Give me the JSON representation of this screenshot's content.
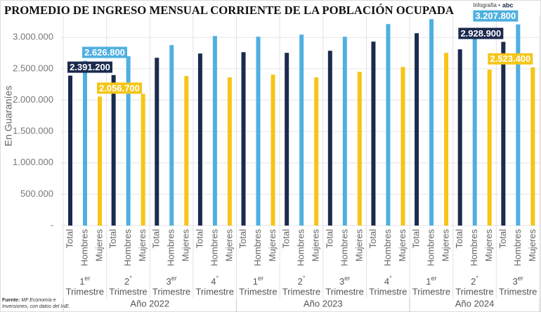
{
  "chart_data": {
    "type": "bar",
    "title": "PROMEDIO DE INGRESO MENSUAL CORRIENTE DE LA POBLACIÓN OCUPADA",
    "credit": "Infografía •",
    "logo": "abc",
    "y_label": "En Guaraníes",
    "source_label": "Fuente:",
    "source": [
      "MF Economía e",
      "Inversiones, con datos del INE."
    ],
    "categories": [
      "1",
      "2",
      "3",
      "4",
      "1",
      "2",
      "3",
      "4",
      "1",
      "2",
      "3"
    ],
    "category_suffixes": [
      "er",
      "°",
      "er",
      "°",
      "er",
      "°",
      "er",
      "°",
      "er",
      "°",
      "er"
    ],
    "category_word": "Trimestre",
    "year_groups": [
      {
        "label": "Año 2022",
        "quarters": 4
      },
      {
        "label": "Año 2023",
        "quarters": 4
      },
      {
        "label": "Año 2024",
        "quarters": 3
      }
    ],
    "series": [
      {
        "name": "Total",
        "color": "#1b2a4e",
        "values": [
          2391200,
          2400000,
          2675000,
          2743000,
          2765000,
          2754000,
          2787000,
          2933000,
          3067000,
          2810000,
          2928900
        ],
        "value_labels": [
          "2.391.200",
          null,
          null,
          null,
          null,
          null,
          null,
          null,
          null,
          null,
          "2.928.900"
        ]
      },
      {
        "name": "Hombres",
        "color": "#4fb0e0",
        "values": [
          2626800,
          2700000,
          2877000,
          3022000,
          3011000,
          3045000,
          3011000,
          3213000,
          3291000,
          3100000,
          3207800
        ],
        "value_labels": [
          "2.626.800",
          null,
          null,
          null,
          null,
          null,
          null,
          null,
          null,
          null,
          "3.207.800"
        ]
      },
      {
        "name": "Mujeres",
        "color": "#f5c518",
        "values": [
          2056700,
          2100000,
          2384000,
          2362000,
          2407000,
          2362000,
          2452000,
          2530000,
          2754000,
          2485000,
          2523400
        ],
        "value_labels": [
          "2.056.700",
          null,
          null,
          null,
          null,
          null,
          null,
          null,
          null,
          null,
          "2.523.400"
        ]
      }
    ],
    "ylim": [
      0,
      3350000
    ],
    "yticks": [
      {
        "value": 0,
        "label": "-"
      },
      {
        "value": 500000,
        "label": "500.000"
      },
      {
        "value": 1000000,
        "label": "1.000.000"
      },
      {
        "value": 1500000,
        "label": "1.500.000"
      },
      {
        "value": 2000000,
        "label": "2.000.000"
      },
      {
        "value": 2500000,
        "label": "2.500.000"
      },
      {
        "value": 3000000,
        "label": "3.000.000"
      }
    ],
    "grid": true
  }
}
